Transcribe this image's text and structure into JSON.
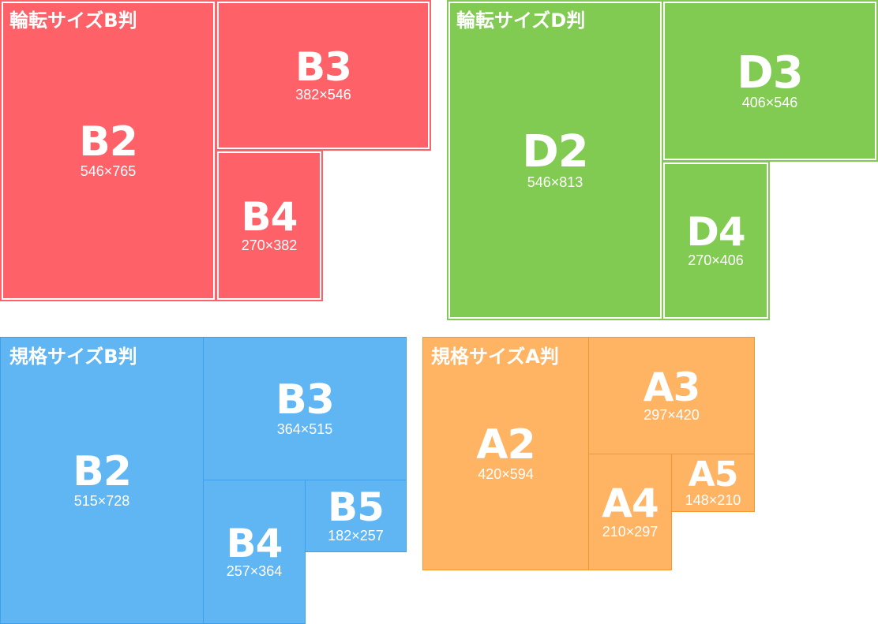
{
  "groups": {
    "rotary_b": {
      "title": "輪転サイズB判",
      "color": "#ff6169",
      "sheets": {
        "b2": {
          "label": "B2",
          "dims": "546×765"
        },
        "b3": {
          "label": "B3",
          "dims": "382×546"
        },
        "b4": {
          "label": "B4",
          "dims": "270×382"
        }
      }
    },
    "rotary_d": {
      "title": "輪転サイズD判",
      "color": "#82cb52",
      "sheets": {
        "d2": {
          "label": "D2",
          "dims": "546×813"
        },
        "d3": {
          "label": "D3",
          "dims": "406×546"
        },
        "d4": {
          "label": "D4",
          "dims": "270×406"
        }
      }
    },
    "standard_b": {
      "title": "規格サイズB判",
      "color": "#60b5f3",
      "sheets": {
        "b2": {
          "label": "B2",
          "dims": "515×728"
        },
        "b3": {
          "label": "B3",
          "dims": "364×515"
        },
        "b4": {
          "label": "B4",
          "dims": "257×364"
        },
        "b5": {
          "label": "B5",
          "dims": "182×257"
        }
      }
    },
    "standard_a": {
      "title": "規格サイズA判",
      "color": "#ffb464",
      "sheets": {
        "a2": {
          "label": "A2",
          "dims": "420×594"
        },
        "a3": {
          "label": "A3",
          "dims": "297×420"
        },
        "a4": {
          "label": "A4",
          "dims": "210×297"
        },
        "a5": {
          "label": "A5",
          "dims": "148×210"
        }
      }
    }
  }
}
